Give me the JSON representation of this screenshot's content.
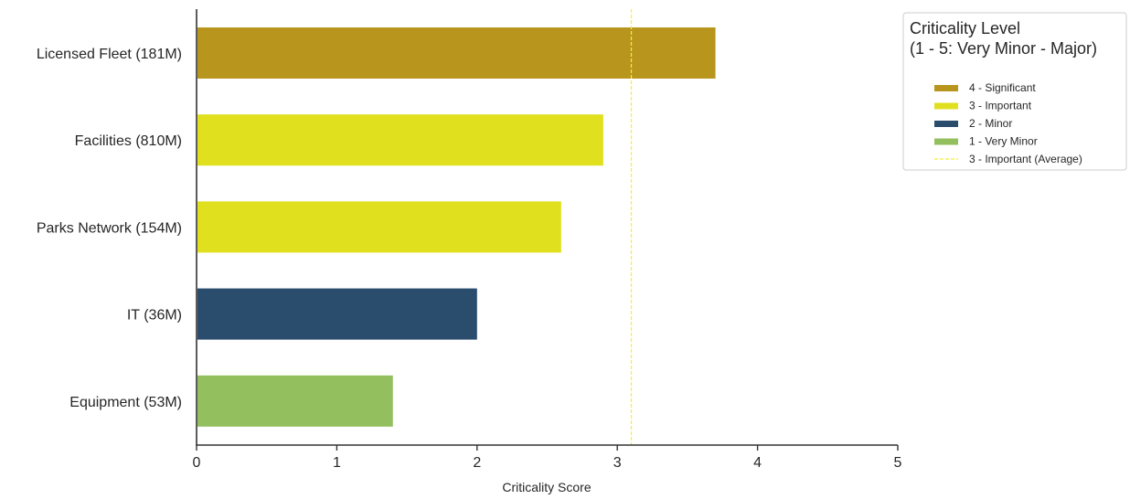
{
  "chart_data": {
    "type": "bar",
    "orientation": "horizontal",
    "categories": [
      "Licensed Fleet (181M)",
      "Facilities (810M)",
      "Parks Network (154M)",
      "IT (36M)",
      "Equipment (53M)"
    ],
    "values": [
      3.7,
      2.9,
      2.6,
      2.0,
      1.4
    ],
    "bar_levels": [
      "4",
      "3",
      "3",
      "2",
      "1"
    ],
    "xlabel": "Criticality Score",
    "ylabel": "",
    "xlim": [
      0,
      5
    ],
    "xticks": [
      0,
      1,
      2,
      3,
      4,
      5
    ],
    "grid": false,
    "average_line": {
      "value": 3.1,
      "label": "3 - Important (Average)",
      "color": "#f2ef3b"
    },
    "legend": {
      "placement": "top-right",
      "title_line1": "Criticality Level",
      "title_line2": "(1 - 5: Very Minor - Major)",
      "entries": [
        {
          "level": "4",
          "label": "4 - Significant",
          "color": "#b8961e"
        },
        {
          "level": "3",
          "label": "3 - Important",
          "color": "#e0e01f"
        },
        {
          "level": "2",
          "label": "2 - Minor",
          "color": "#2a4d6e"
        },
        {
          "level": "1",
          "label": "1 - Very Minor",
          "color": "#93bf5f"
        }
      ]
    }
  }
}
